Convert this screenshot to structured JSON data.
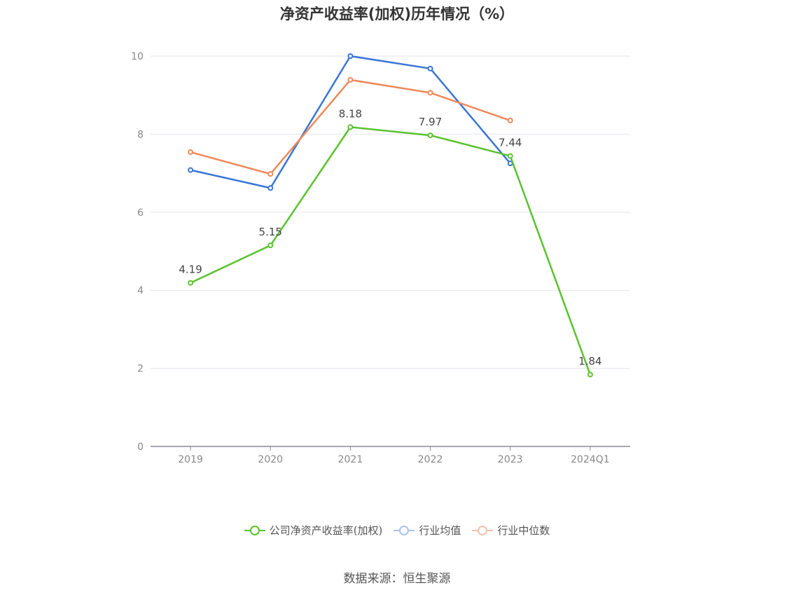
{
  "chart_data": {
    "type": "line",
    "title": "净资产收益率(加权)历年情况（%）",
    "categories": [
      "2019",
      "2020",
      "2021",
      "2022",
      "2023",
      "2024Q1"
    ],
    "ylim": [
      0,
      10
    ],
    "yticks": [
      0,
      2,
      4,
      6,
      8,
      10
    ],
    "grid": true,
    "legend_position": "bottom",
    "series": [
      {
        "name": "公司净资产收益率(加权)",
        "color": "#5ac22e",
        "values": [
          4.19,
          5.15,
          8.18,
          7.97,
          7.44,
          1.84
        ],
        "labels": [
          "4.19",
          "5.15",
          "8.18",
          "7.97",
          "7.44",
          "1.84"
        ]
      },
      {
        "name": "行业均值",
        "color": "#3a75d8",
        "values": [
          7.08,
          6.62,
          10.0,
          9.68,
          7.25,
          null
        ]
      },
      {
        "name": "行业中位数",
        "color": "#f0885a",
        "values": [
          7.54,
          6.98,
          9.39,
          9.06,
          8.35,
          null
        ]
      }
    ]
  },
  "legend": {
    "items": [
      {
        "label": "公司净资产收益率(加权)",
        "color": "#5ac22e",
        "swatch": "#5ac22e"
      },
      {
        "label": "行业均值",
        "color": "#3a75d8",
        "swatch": "#a9c3ef"
      },
      {
        "label": "行业中位数",
        "color": "#f0885a",
        "swatch": "#f8c2aa"
      }
    ]
  },
  "source": "数据来源：恒生聚源"
}
